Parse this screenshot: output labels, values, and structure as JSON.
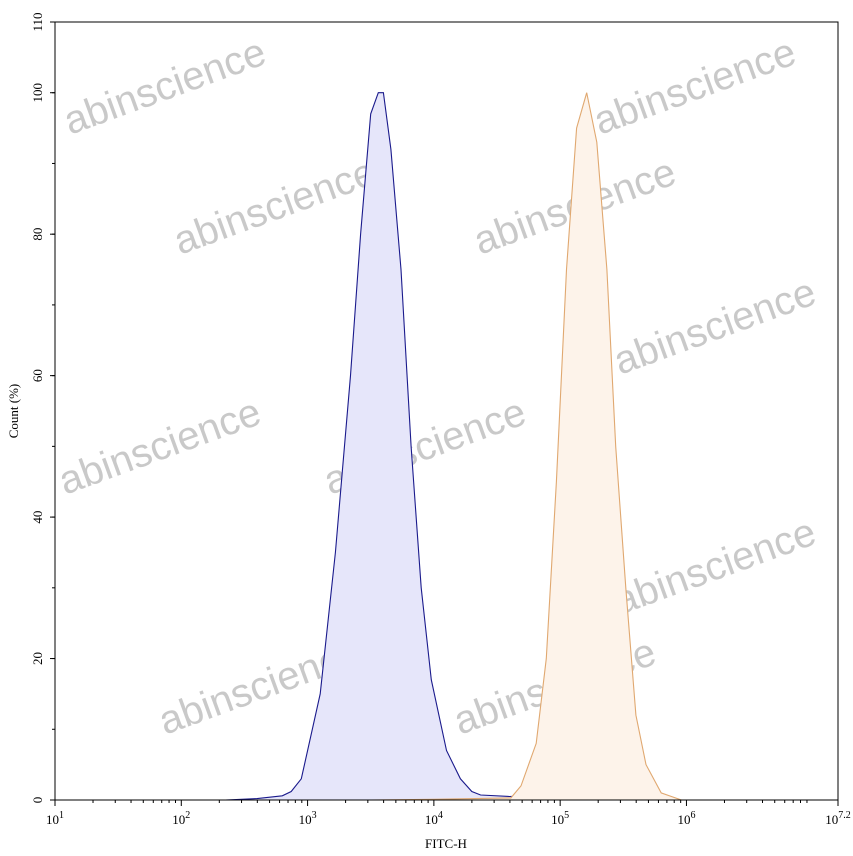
{
  "chart_data": {
    "type": "area",
    "title": "",
    "xlabel": "FITC-H",
    "ylabel": "Count  (%)",
    "xscale": "log",
    "xlim_log10": [
      1,
      7.2
    ],
    "ylim": [
      0,
      110
    ],
    "x_ticks": [
      {
        "base": "10",
        "exp": "1",
        "v": 1
      },
      {
        "base": "10",
        "exp": "2",
        "v": 2
      },
      {
        "base": "10",
        "exp": "3",
        "v": 3
      },
      {
        "base": "10",
        "exp": "4",
        "v": 4
      },
      {
        "base": "10",
        "exp": "5",
        "v": 5
      },
      {
        "base": "10",
        "exp": "6",
        "v": 6
      },
      {
        "base": "10",
        "exp": "7.2",
        "v": 7.2
      }
    ],
    "y_ticks": [
      "0",
      "20",
      "40",
      "60",
      "80",
      "100",
      "110"
    ],
    "grid": false,
    "series": [
      {
        "color": "#1a1a8c",
        "fill": "#e6e6fa",
        "log10_x": [
          2.35,
          2.6,
          2.8,
          2.87,
          2.95,
          3.0,
          3.1,
          3.22,
          3.34,
          3.42,
          3.5,
          3.56,
          3.6,
          3.66,
          3.74,
          3.82,
          3.9,
          3.98,
          4.1,
          4.21,
          4.3,
          4.37,
          4.6,
          4.8,
          5.0,
          5.09,
          5.17
        ],
        "y": [
          0,
          0.2,
          0.6,
          1.2,
          3,
          7,
          15,
          35,
          60,
          80,
          97,
          100,
          100,
          92,
          75,
          50,
          30,
          17,
          7,
          3,
          1.2,
          0.7,
          0.5,
          0.7,
          0.6,
          0.5,
          0
        ]
      },
      {
        "color": "#e0a870",
        "fill": "#fdf3ea",
        "log10_x": [
          3.5,
          4.0,
          4.61,
          4.69,
          4.81,
          4.89,
          4.97,
          5.05,
          5.13,
          5.21,
          5.29,
          5.37,
          5.44,
          5.52,
          5.6,
          5.68,
          5.8,
          5.96
        ],
        "y": [
          0,
          0.1,
          0.3,
          2,
          8,
          20,
          45,
          75,
          95,
          100,
          93,
          75,
          50,
          30,
          12,
          5,
          1,
          0
        ]
      }
    ]
  },
  "watermark": "abinscience"
}
